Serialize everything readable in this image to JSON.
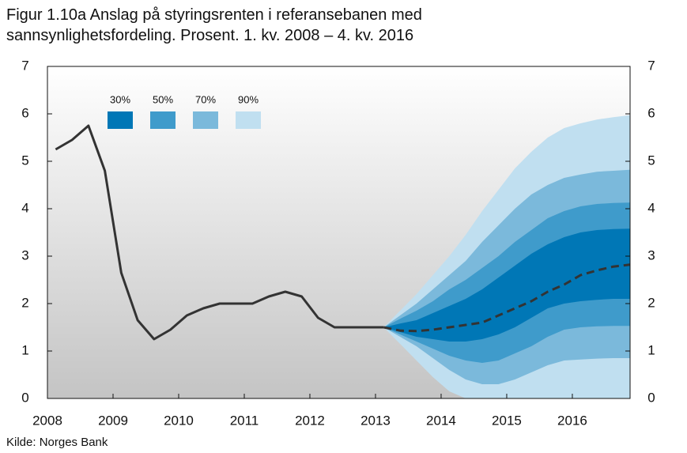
{
  "chart_data": {
    "type": "fan",
    "title": "Figur 1.10a Anslag på styringsrenten i referansebanen med sannsynlighetsfordeling. Prosent. 1. kv. 2008 – 4. kv. 2016",
    "source": "Kilde: Norges Bank",
    "xlim": [
      2008,
      2016.88
    ],
    "xticks": [
      2008,
      2009,
      2010,
      2011,
      2012,
      2013,
      2014,
      2015,
      2016
    ],
    "ylim": [
      0,
      7
    ],
    "yticks": [
      0,
      1,
      2,
      3,
      4,
      5,
      6,
      7
    ],
    "y2lim": [
      0,
      7
    ],
    "y2ticks": [
      0,
      1,
      2,
      3,
      4,
      5,
      6,
      7
    ],
    "bands": {
      "x": [
        2013.125,
        2013.375,
        2013.625,
        2013.875,
        2014.125,
        2014.375,
        2014.625,
        2014.875,
        2015.125,
        2015.375,
        2015.625,
        2015.875,
        2016.125,
        2016.375,
        2016.625,
        2016.875
      ],
      "series": [
        {
          "name": "90%",
          "color": "#c0dff0",
          "low": [
            1.5,
            1.15,
            0.8,
            0.45,
            0.15,
            0,
            0,
            0,
            0,
            0,
            0,
            0,
            0,
            0,
            0,
            0
          ],
          "high": [
            1.5,
            1.85,
            2.2,
            2.6,
            3.0,
            3.45,
            3.95,
            4.4,
            4.85,
            5.2,
            5.5,
            5.7,
            5.8,
            5.88,
            5.93,
            5.97
          ]
        },
        {
          "name": "70%",
          "color": "#7bb9db",
          "low": [
            1.5,
            1.3,
            1.1,
            0.85,
            0.6,
            0.4,
            0.3,
            0.3,
            0.4,
            0.55,
            0.7,
            0.8,
            0.82,
            0.84,
            0.85,
            0.85
          ],
          "high": [
            1.5,
            1.75,
            2.0,
            2.3,
            2.6,
            2.9,
            3.3,
            3.65,
            4.0,
            4.3,
            4.5,
            4.65,
            4.72,
            4.78,
            4.8,
            4.82
          ]
        },
        {
          "name": "50%",
          "color": "#3f9bcb",
          "low": [
            1.5,
            1.35,
            1.2,
            1.05,
            0.9,
            0.8,
            0.75,
            0.8,
            0.95,
            1.1,
            1.3,
            1.45,
            1.5,
            1.52,
            1.53,
            1.53
          ],
          "high": [
            1.5,
            1.68,
            1.85,
            2.05,
            2.3,
            2.5,
            2.75,
            3.0,
            3.3,
            3.55,
            3.8,
            3.95,
            4.05,
            4.1,
            4.12,
            4.13
          ]
        },
        {
          "name": "30%",
          "color": "#0077b6",
          "low": [
            1.5,
            1.4,
            1.3,
            1.25,
            1.2,
            1.2,
            1.25,
            1.35,
            1.5,
            1.7,
            1.9,
            2.0,
            2.05,
            2.08,
            2.1,
            2.1
          ],
          "high": [
            1.5,
            1.58,
            1.65,
            1.8,
            1.95,
            2.1,
            2.3,
            2.55,
            2.8,
            3.05,
            3.25,
            3.4,
            3.5,
            3.55,
            3.57,
            3.58
          ]
        }
      ]
    },
    "lines": [
      {
        "style": "solid",
        "color": "#333333",
        "x": [
          2008.125,
          2008.375,
          2008.625,
          2008.875,
          2009.125,
          2009.375,
          2009.625,
          2009.875,
          2010.125,
          2010.375,
          2010.625,
          2010.875,
          2011.125,
          2011.375,
          2011.625,
          2011.875,
          2012.125,
          2012.375,
          2012.625,
          2012.875,
          2013.125
        ],
        "values": [
          5.25,
          5.45,
          5.75,
          4.8,
          2.65,
          1.65,
          1.25,
          1.45,
          1.75,
          1.9,
          2.0,
          2.0,
          2.0,
          2.15,
          2.25,
          2.15,
          1.7,
          1.5,
          1.5,
          1.5,
          1.5
        ]
      },
      {
        "style": "dashed",
        "color": "#333333",
        "x": [
          2013.125,
          2013.375,
          2013.625,
          2013.875,
          2014.125,
          2014.375,
          2014.625,
          2014.875,
          2015.125,
          2015.375,
          2015.625,
          2015.875,
          2016.125,
          2016.375,
          2016.625,
          2016.875
        ],
        "values": [
          1.5,
          1.43,
          1.42,
          1.45,
          1.5,
          1.55,
          1.6,
          1.75,
          1.9,
          2.05,
          2.25,
          2.4,
          2.6,
          2.7,
          2.78,
          2.82
        ]
      }
    ]
  }
}
